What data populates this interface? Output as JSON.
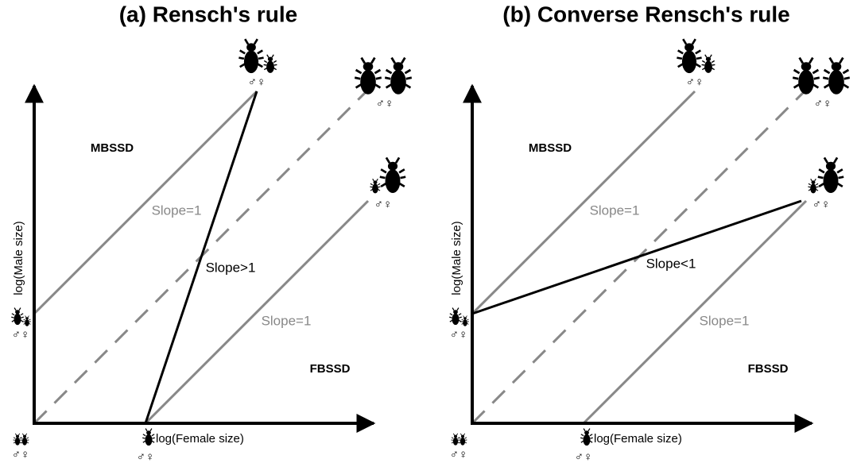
{
  "panels": [
    {
      "title": "(a) Rensch's rule",
      "mbssd": "MBSSD",
      "fbssd": "FBSSD",
      "upper_slope": "Slope=1",
      "lower_slope": "Slope=1",
      "main_slope": "Slope>1",
      "y_axis": "log(Male size)",
      "x_axis": "log(Female size)",
      "sex_labels": [
        "♂♀",
        "♂♀",
        "♂♀",
        "♂♀",
        "♂♀",
        "♂♀"
      ]
    },
    {
      "title": "(b) Converse Rensch's rule",
      "mbssd": "MBSSD",
      "fbssd": "FBSSD",
      "upper_slope": "Slope=1",
      "lower_slope": "Slope=1",
      "main_slope": "Slope<1",
      "y_axis": "log(Male size)",
      "x_axis": "log(Female size)",
      "sex_labels": [
        "♂♀",
        "♂♀",
        "♂♀",
        "♂♀",
        "♂♀",
        "♂♀"
      ]
    }
  ]
}
